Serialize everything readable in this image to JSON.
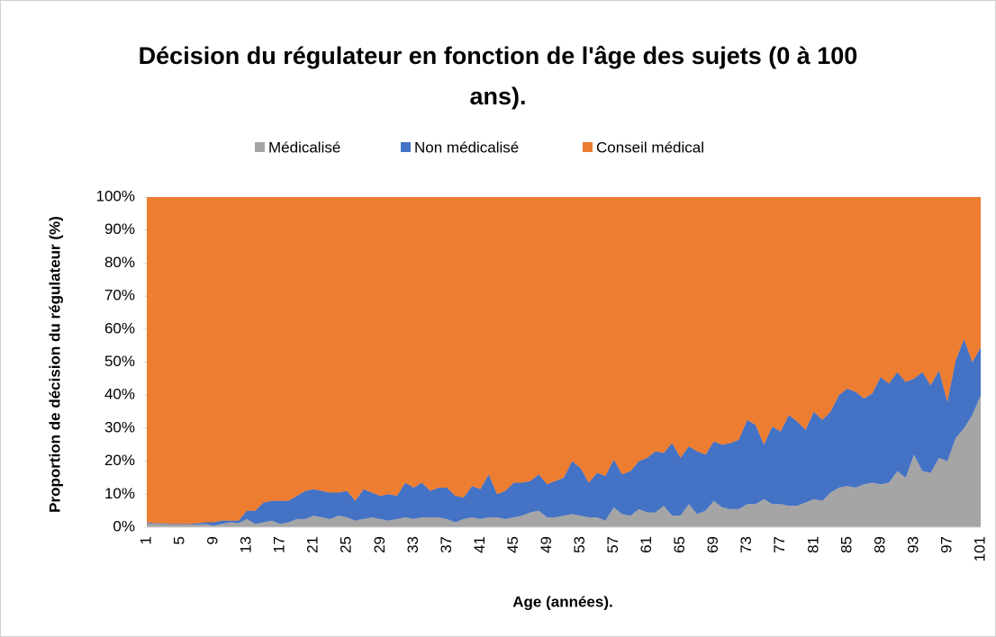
{
  "chart_data": {
    "type": "stacked_area",
    "title": "Décision du régulateur en fonction de l'âge des sujets (0 à 100 ans).",
    "x_label": "Age (années).",
    "y_label": "Proportion de décision du régulateur (%)",
    "categories": [
      1,
      null,
      null,
      null,
      5,
      null,
      null,
      null,
      9,
      null,
      null,
      null,
      13,
      null,
      null,
      null,
      17,
      null,
      null,
      null,
      21,
      null,
      null,
      null,
      25,
      null,
      null,
      null,
      29,
      null,
      null,
      null,
      33,
      null,
      null,
      null,
      37,
      null,
      null,
      null,
      41,
      null,
      null,
      null,
      45,
      null,
      null,
      null,
      49,
      null,
      null,
      null,
      53,
      null,
      null,
      null,
      57,
      null,
      null,
      null,
      61,
      null,
      null,
      null,
      65,
      null,
      null,
      null,
      69,
      null,
      null,
      null,
      73,
      null,
      null,
      null,
      77,
      null,
      null,
      null,
      81,
      null,
      null,
      null,
      85,
      null,
      null,
      null,
      89,
      null,
      null,
      null,
      93,
      null,
      null,
      null,
      97,
      null,
      null,
      null,
      101
    ],
    "series": [
      {
        "name": "Médicalisé",
        "color": "#a5a5a5",
        "values": [
          1.2,
          1,
          1,
          0.8,
          0.8,
          0.8,
          0.8,
          1,
          0.5,
          1,
          1.5,
          1.2,
          2.5,
          1,
          1.5,
          2,
          1,
          1.5,
          2.5,
          2.5,
          3.5,
          3,
          2.5,
          3.5,
          3,
          2,
          2.5,
          3,
          2.5,
          2,
          2.5,
          3,
          2.5,
          3,
          3,
          3,
          2.5,
          1.5,
          2.5,
          3,
          2.5,
          3,
          3,
          2.5,
          3,
          3.5,
          4.5,
          5,
          3,
          3,
          3.5,
          4,
          3.5,
          3,
          3,
          2,
          6,
          4,
          3.5,
          5.5,
          4.5,
          4.5,
          6.5,
          3.5,
          3.5,
          7,
          4,
          5,
          8,
          6,
          5.5,
          5.5,
          7,
          7,
          8.5,
          7,
          7,
          6.5,
          6.5,
          7.5,
          8.5,
          8,
          10.5,
          12,
          12.5,
          12,
          13,
          13.5,
          13,
          13.5,
          17,
          15,
          22,
          17,
          16.5,
          21,
          20,
          27,
          30,
          34,
          40
        ]
      },
      {
        "name": "Non médicalisé",
        "color": "#4472c4",
        "values": [
          0.3,
          0.2,
          0.2,
          0.2,
          0.2,
          0.2,
          0.4,
          0.5,
          1,
          1,
          0.5,
          0.8,
          2.5,
          4,
          6,
          6,
          7,
          6.5,
          7,
          8.5,
          8,
          8,
          8,
          7,
          8,
          6,
          9,
          7.5,
          7,
          8,
          7,
          10.5,
          9.5,
          10.5,
          8,
          9,
          9.5,
          8,
          6.5,
          9.5,
          9,
          13,
          7,
          8.5,
          10.5,
          10,
          9.5,
          11,
          10,
          11,
          11.5,
          16,
          14.5,
          10.5,
          13.5,
          13.5,
          14.5,
          12,
          13.5,
          14.5,
          16.5,
          18.5,
          16,
          22,
          17.5,
          17.5,
          19,
          17,
          18,
          19,
          20,
          21,
          25.5,
          24,
          16.5,
          23.5,
          22,
          27.5,
          25.5,
          22,
          26.5,
          24.5,
          24.5,
          28,
          29.5,
          29,
          26,
          27,
          32.5,
          30,
          30,
          29,
          23,
          30,
          26.5,
          26.5,
          18,
          23.5,
          27,
          16,
          14.5
        ]
      },
      {
        "name": "Conseil médical",
        "color": "#ed7d31",
        "values": [
          98.5,
          98.8,
          98.8,
          99,
          99,
          99,
          98.8,
          98.5,
          98.5,
          98,
          98,
          98,
          95,
          95,
          92.5,
          92,
          92,
          92,
          90.5,
          89,
          88.5,
          89,
          89.5,
          89.5,
          89,
          92,
          88.5,
          89.5,
          90.5,
          90,
          90.5,
          86.5,
          88,
          86.5,
          89,
          88,
          88,
          90.5,
          91,
          87.5,
          88.5,
          84,
          90,
          89,
          86.5,
          86.5,
          86,
          84,
          87,
          86,
          85,
          80,
          82,
          86.5,
          83.5,
          84.5,
          79.5,
          84,
          83,
          80,
          79,
          77,
          77.5,
          74.5,
          79,
          75.5,
          77,
          78,
          74,
          75,
          74.5,
          73.5,
          67.5,
          69,
          75,
          69.5,
          71,
          66,
          68,
          70.5,
          65,
          67.5,
          65,
          60,
          58,
          59,
          61,
          59.5,
          54.5,
          56.5,
          53,
          56,
          55,
          53,
          57,
          52.5,
          62,
          49.5,
          43,
          50,
          45.5
        ]
      }
    ],
    "ylim": [
      0,
      100
    ],
    "yticks": [
      {
        "value": 0,
        "label": "0%"
      },
      {
        "value": 10,
        "label": "10%"
      },
      {
        "value": 20,
        "label": "20%"
      },
      {
        "value": 30,
        "label": "30%"
      },
      {
        "value": 40,
        "label": "40%"
      },
      {
        "value": 50,
        "label": "50%"
      },
      {
        "value": 60,
        "label": "60%"
      },
      {
        "value": 70,
        "label": "70%"
      },
      {
        "value": 80,
        "label": "80%"
      },
      {
        "value": 90,
        "label": "90%"
      },
      {
        "value": 100,
        "label": "100%"
      }
    ],
    "legend": "top"
  }
}
